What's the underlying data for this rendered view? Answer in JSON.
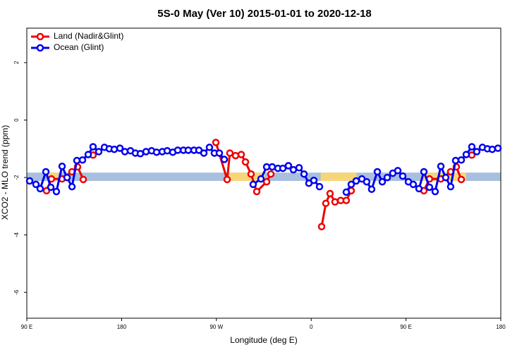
{
  "chart_data": {
    "type": "line",
    "title": "5S-0 May (Ver 10)   2015-01-01 to 2020-12-18",
    "x_label": "Longitude (deg E)",
    "y_label": "XCO2 - MLO trend (ppm)",
    "xlim": [
      90,
      540
    ],
    "ylim": [
      -6.9,
      3.2
    ],
    "xticks": [
      {
        "value": 90,
        "label": "90 E"
      },
      180,
      {
        "value": 270,
        "label": "90 W"
      },
      {
        "value": 360,
        "label": "0"
      },
      {
        "value": 450,
        "label": "90 E"
      },
      {
        "value": 540,
        "label": "180"
      }
    ],
    "yticks": [
      -6,
      -4,
      -2,
      0,
      2
    ],
    "legend": "top-left",
    "band": {
      "range": [
        -2.12,
        -1.83
      ],
      "color": "#a9bfdf",
      "segments": [
        {
          "x": [
            110,
            120
          ],
          "color": "#f5d77a"
        },
        {
          "x": [
            279,
            316
          ],
          "color": "#f5d77a"
        },
        {
          "x": [
            369,
            403
          ],
          "color": "#f5d77a"
        },
        {
          "x": [
            466,
            507
          ],
          "color": "#f5d77a"
        }
      ]
    },
    "series": [
      {
        "name": "Land (Nadir&Glint)",
        "color": "#ee0000",
        "x": [
          108.7,
          113.4,
          123.5,
          132.9,
          138.2,
          143.6,
          null,
          152.9,
          null,
          269.5,
          280.2,
          282.8,
          288.2,
          293.6,
          297.6,
          302.9,
          308.3,
          317.7,
          321.7,
          null,
          369.9,
          373.9,
          377.9,
          382.6,
          388.0,
          393.3,
          398.0,
          null,
          467.0,
          472.3,
          483.1,
          492.4,
          497.8,
          502.5,
          null,
          512.5
        ],
        "values": [
          -2.46,
          -2.05,
          -2.05,
          -1.8,
          -1.63,
          -2.07,
          null,
          -1.22,
          null,
          -0.78,
          -2.07,
          -1.15,
          -1.24,
          -1.2,
          -1.46,
          -1.88,
          -2.49,
          -2.15,
          -1.88,
          null,
          -3.71,
          -2.9,
          -2.56,
          -2.85,
          -2.8,
          -2.8,
          -2.46,
          null,
          -2.46,
          -2.05,
          -2.05,
          -1.8,
          -1.63,
          -2.07,
          null,
          -1.22
        ]
      },
      {
        "name": "Ocean (Glint)",
        "color": "#0000ee",
        "x": [
          92.7,
          98.7,
          102.7,
          108.1,
          112.8,
          118.1,
          123.5,
          128.2,
          132.9,
          137.5,
          142.9,
          148.3,
          152.9,
          158.3,
          163.7,
          168.3,
          173.0,
          178.4,
          183.1,
          188.4,
          193.1,
          197.8,
          203.2,
          208.5,
          213.2,
          218.6,
          223.3,
          228.6,
          233.3,
          238.7,
          243.3,
          248.7,
          253.4,
          258.1,
          263.4,
          268.1,
          272.8,
          277.5,
          null,
          304.9,
          312.3,
          317.7,
          323.0,
          328.4,
          333.1,
          338.4,
          343.1,
          348.5,
          353.2,
          357.8,
          362.5,
          367.9,
          null,
          393.3,
          398.0,
          402.7,
          408.1,
          412.7,
          417.4,
          422.8,
          427.5,
          432.2,
          437.5,
          442.2,
          446.9,
          452.3,
          456.9,
          462.3,
          467.0,
          472.3,
          477.7,
          483.1,
          487.7,
          492.4,
          497.1,
          502.5,
          507.2,
          512.5,
          517.2,
          522.6,
          527.3,
          531.9,
          537.3
        ],
        "values": [
          -2.12,
          -2.24,
          -2.39,
          -1.8,
          -2.34,
          -2.49,
          -1.61,
          -2.0,
          -2.32,
          -1.41,
          -1.39,
          -1.2,
          -0.93,
          -1.1,
          -0.95,
          -1.0,
          -1.02,
          -0.98,
          -1.1,
          -1.07,
          -1.15,
          -1.17,
          -1.1,
          -1.07,
          -1.12,
          -1.1,
          -1.07,
          -1.12,
          -1.05,
          -1.05,
          -1.05,
          -1.05,
          -1.05,
          -1.15,
          -0.95,
          -1.15,
          -1.15,
          -1.37,
          null,
          -2.24,
          -2.05,
          -1.63,
          -1.63,
          -1.68,
          -1.68,
          -1.59,
          -1.73,
          -1.66,
          -1.88,
          -2.2,
          -2.1,
          -2.32,
          null,
          -2.51,
          -2.24,
          -2.12,
          -2.05,
          -2.15,
          -2.41,
          -1.8,
          -2.15,
          -2.0,
          -1.85,
          -1.76,
          -1.95,
          -2.15,
          -2.24,
          -2.39,
          -1.8,
          -2.34,
          -2.49,
          -1.61,
          -2.0,
          -2.32,
          -1.41,
          -1.39,
          -1.2,
          -0.93,
          -1.1,
          -0.95,
          -1.0,
          -1.02,
          -0.98
        ]
      }
    ]
  }
}
